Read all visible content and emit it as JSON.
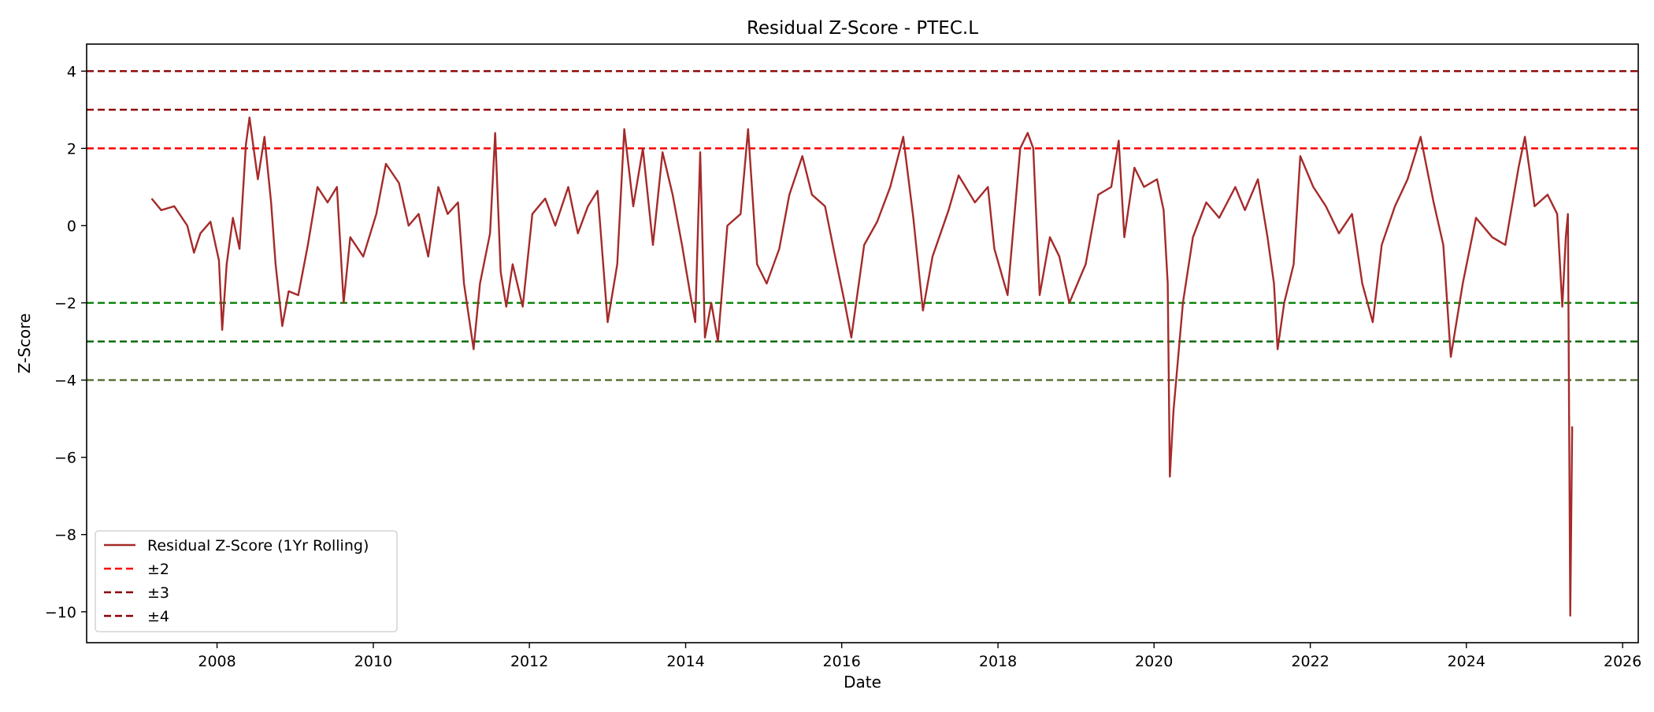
{
  "chart_data": {
    "type": "line",
    "title": "Residual Z-Score - PTEC.L",
    "xlabel": "Date",
    "ylabel": "Z-Score",
    "xlim": [
      "2006-05-01",
      "2026-03-15"
    ],
    "ylim": [
      -10.8,
      4.7
    ],
    "x_ticks": [
      "2008",
      "2010",
      "2012",
      "2014",
      "2016",
      "2018",
      "2020",
      "2022",
      "2024",
      "2026"
    ],
    "y_ticks": [
      4,
      2,
      0,
      -2,
      -4,
      -6,
      -8,
      -10
    ],
    "y_tick_labels": [
      "4",
      "2",
      "0",
      "−2",
      "−4",
      "−6",
      "−8",
      "−10"
    ],
    "grid": false,
    "legend_position": "lower-left",
    "legend": [
      "Residual Z-Score (1Yr Rolling)",
      "±2",
      "±3",
      "±4"
    ],
    "series": [
      {
        "name": "Residual Z-Score (1Yr Rolling)",
        "color": "#a52a2a",
        "points": [
          [
            "2007-03-01",
            0.7
          ],
          [
            "2007-04-15",
            0.4
          ],
          [
            "2007-06-15",
            0.5
          ],
          [
            "2007-08-15",
            0.0
          ],
          [
            "2007-09-15",
            -0.7
          ],
          [
            "2007-10-15",
            -0.2
          ],
          [
            "2007-12-01",
            0.1
          ],
          [
            "2008-01-10",
            -0.9
          ],
          [
            "2008-01-25",
            -2.7
          ],
          [
            "2008-02-15",
            -1.0
          ],
          [
            "2008-03-15",
            0.2
          ],
          [
            "2008-04-15",
            -0.6
          ],
          [
            "2008-05-15",
            2.1
          ],
          [
            "2008-06-01",
            2.8
          ],
          [
            "2008-06-20",
            2.0
          ],
          [
            "2008-07-10",
            1.2
          ],
          [
            "2008-08-10",
            2.3
          ],
          [
            "2008-09-10",
            0.6
          ],
          [
            "2008-10-01",
            -1.0
          ],
          [
            "2008-11-01",
            -2.6
          ],
          [
            "2008-12-01",
            -1.7
          ],
          [
            "2009-01-15",
            -1.8
          ],
          [
            "2009-03-01",
            -0.5
          ],
          [
            "2009-04-15",
            1.0
          ],
          [
            "2009-06-01",
            0.6
          ],
          [
            "2009-07-15",
            1.0
          ],
          [
            "2009-08-15",
            -2.0
          ],
          [
            "2009-09-15",
            -0.3
          ],
          [
            "2009-11-15",
            -0.8
          ],
          [
            "2010-01-15",
            0.3
          ],
          [
            "2010-03-01",
            1.6
          ],
          [
            "2010-05-01",
            1.1
          ],
          [
            "2010-06-15",
            0.0
          ],
          [
            "2010-08-01",
            0.3
          ],
          [
            "2010-09-15",
            -0.8
          ],
          [
            "2010-11-01",
            1.0
          ],
          [
            "2010-12-15",
            0.3
          ],
          [
            "2011-02-01",
            0.6
          ],
          [
            "2011-03-01",
            -1.5
          ],
          [
            "2011-04-15",
            -3.2
          ],
          [
            "2011-05-15",
            -1.5
          ],
          [
            "2011-07-01",
            -0.2
          ],
          [
            "2011-07-25",
            2.4
          ],
          [
            "2011-08-20",
            -1.2
          ],
          [
            "2011-09-15",
            -2.1
          ],
          [
            "2011-10-15",
            -1.0
          ],
          [
            "2011-12-01",
            -2.1
          ],
          [
            "2012-01-15",
            0.3
          ],
          [
            "2012-03-15",
            0.7
          ],
          [
            "2012-05-01",
            0.0
          ],
          [
            "2012-07-01",
            1.0
          ],
          [
            "2012-08-15",
            -0.2
          ],
          [
            "2012-10-01",
            0.5
          ],
          [
            "2012-11-15",
            0.9
          ],
          [
            "2013-01-01",
            -2.5
          ],
          [
            "2013-02-15",
            -1.0
          ],
          [
            "2013-03-20",
            2.5
          ],
          [
            "2013-05-01",
            0.5
          ],
          [
            "2013-06-15",
            2.0
          ],
          [
            "2013-08-01",
            -0.5
          ],
          [
            "2013-09-15",
            1.9
          ],
          [
            "2013-11-01",
            0.8
          ],
          [
            "2013-12-15",
            -0.5
          ],
          [
            "2014-01-20",
            -1.7
          ],
          [
            "2014-02-15",
            -2.5
          ],
          [
            "2014-03-10",
            1.9
          ],
          [
            "2014-04-01",
            -2.9
          ],
          [
            "2014-05-01",
            -2.0
          ],
          [
            "2014-06-01",
            -3.0
          ],
          [
            "2014-07-15",
            0.0
          ],
          [
            "2014-09-15",
            0.3
          ],
          [
            "2014-10-20",
            2.5
          ],
          [
            "2014-12-01",
            -1.0
          ],
          [
            "2015-01-15",
            -1.5
          ],
          [
            "2015-03-15",
            -0.6
          ],
          [
            "2015-05-01",
            0.8
          ],
          [
            "2015-07-01",
            1.8
          ],
          [
            "2015-08-15",
            0.8
          ],
          [
            "2015-10-15",
            0.5
          ],
          [
            "2015-12-01",
            -0.8
          ],
          [
            "2016-01-15",
            -2.0
          ],
          [
            "2016-02-15",
            -2.9
          ],
          [
            "2016-04-15",
            -0.5
          ],
          [
            "2016-06-15",
            0.1
          ],
          [
            "2016-08-15",
            1.0
          ],
          [
            "2016-10-15",
            2.3
          ],
          [
            "2016-12-01",
            0.2
          ],
          [
            "2017-01-15",
            -2.2
          ],
          [
            "2017-03-01",
            -0.8
          ],
          [
            "2017-05-15",
            0.4
          ],
          [
            "2017-07-01",
            1.3
          ],
          [
            "2017-09-15",
            0.6
          ],
          [
            "2017-11-15",
            1.0
          ],
          [
            "2017-12-15",
            -0.6
          ],
          [
            "2018-02-15",
            -1.8
          ],
          [
            "2018-04-15",
            2.0
          ],
          [
            "2018-05-20",
            2.4
          ],
          [
            "2018-06-15",
            2.0
          ],
          [
            "2018-07-15",
            -1.8
          ],
          [
            "2018-09-01",
            -0.3
          ],
          [
            "2018-10-15",
            -0.8
          ],
          [
            "2018-12-01",
            -2.0
          ],
          [
            "2019-02-15",
            -1.0
          ],
          [
            "2019-04-15",
            0.8
          ],
          [
            "2019-06-15",
            1.0
          ],
          [
            "2019-07-20",
            2.2
          ],
          [
            "2019-08-15",
            -0.3
          ],
          [
            "2019-10-01",
            1.5
          ],
          [
            "2019-11-15",
            1.0
          ],
          [
            "2020-01-15",
            1.2
          ],
          [
            "2020-02-15",
            0.4
          ],
          [
            "2020-03-05",
            -1.5
          ],
          [
            "2020-03-15",
            -6.5
          ],
          [
            "2020-04-01",
            -4.8
          ],
          [
            "2020-05-15",
            -2.0
          ],
          [
            "2020-07-01",
            -0.3
          ],
          [
            "2020-09-01",
            0.6
          ],
          [
            "2020-11-01",
            0.2
          ],
          [
            "2021-01-15",
            1.0
          ],
          [
            "2021-03-01",
            0.4
          ],
          [
            "2021-05-01",
            1.2
          ],
          [
            "2021-06-15",
            -0.3
          ],
          [
            "2021-07-15",
            -1.5
          ],
          [
            "2021-08-01",
            -3.2
          ],
          [
            "2021-09-01",
            -2.0
          ],
          [
            "2021-10-15",
            -1.0
          ],
          [
            "2021-11-15",
            1.8
          ],
          [
            "2022-01-15",
            1.0
          ],
          [
            "2022-03-15",
            0.5
          ],
          [
            "2022-05-15",
            -0.2
          ],
          [
            "2022-07-15",
            0.3
          ],
          [
            "2022-09-01",
            -1.5
          ],
          [
            "2022-10-20",
            -2.5
          ],
          [
            "2022-12-01",
            -0.5
          ],
          [
            "2023-02-01",
            0.5
          ],
          [
            "2023-04-01",
            1.2
          ],
          [
            "2023-06-01",
            2.3
          ],
          [
            "2023-08-01",
            0.6
          ],
          [
            "2023-09-15",
            -0.5
          ],
          [
            "2023-10-20",
            -3.4
          ],
          [
            "2023-12-15",
            -1.5
          ],
          [
            "2024-02-15",
            0.2
          ],
          [
            "2024-05-01",
            -0.3
          ],
          [
            "2024-07-01",
            -0.5
          ],
          [
            "2024-09-01",
            1.5
          ],
          [
            "2024-10-01",
            2.3
          ],
          [
            "2024-11-15",
            0.5
          ],
          [
            "2025-01-15",
            0.8
          ],
          [
            "2025-03-01",
            0.3
          ],
          [
            "2025-03-25",
            -2.1
          ],
          [
            "2025-04-10",
            -0.3
          ],
          [
            "2025-04-20",
            0.3
          ],
          [
            "2025-05-01",
            -10.1
          ],
          [
            "2025-05-10",
            -5.2
          ]
        ]
      },
      {
        "name": "±2",
        "type": "hline",
        "values": [
          2,
          -2
        ],
        "colors": [
          "#ff0000",
          "#007f00"
        ]
      },
      {
        "name": "±3",
        "type": "hline",
        "values": [
          3,
          -3
        ],
        "colors": [
          "#8b0000",
          "#006400"
        ]
      },
      {
        "name": "±4",
        "type": "hline",
        "values": [
          4,
          -4
        ],
        "colors": [
          "#8b0000",
          "#556b2f"
        ]
      }
    ]
  }
}
